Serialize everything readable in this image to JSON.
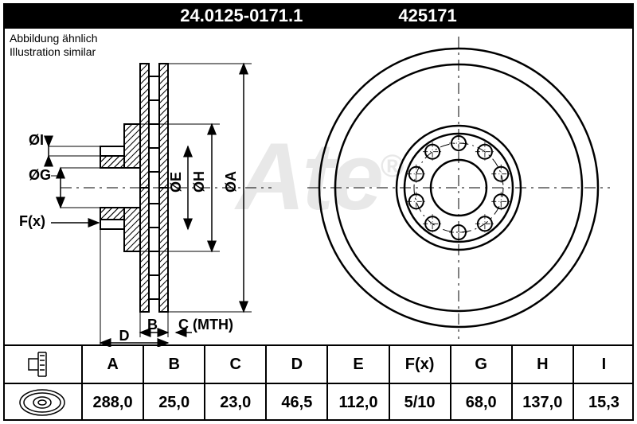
{
  "header": {
    "part_no_long": "24.0125-0171.1",
    "part_no_short": "425171"
  },
  "subtitle": {
    "line1": "Abbildung ähnlich",
    "line2": "Illustration similar"
  },
  "watermark": {
    "text": "Ate",
    "reg": "®"
  },
  "diagram": {
    "labels": {
      "diaI": "ØI",
      "diaG": "ØG",
      "diaE": "ØE",
      "diaH": "ØH",
      "diaA": "ØA",
      "Fx": "F(x)",
      "B": "B",
      "D": "D",
      "C_mth": "C (MTH)"
    },
    "front_view": {
      "outer_radius": 175,
      "inner_radius": 155,
      "hub_radius": 78,
      "bore_radius": 35,
      "bolt_circle_radius": 56,
      "bolt_hole_radius": 9,
      "n_bolts": 10,
      "stroke": "#000000",
      "stroke_width": 2,
      "centerline_dash": "12 6 3 6"
    },
    "side_view": {
      "stroke": "#000000",
      "stroke_width": 2,
      "hatch_spacing": 6
    }
  },
  "table": {
    "headers": [
      "A",
      "B",
      "C",
      "D",
      "E",
      "F(x)",
      "G",
      "H",
      "I"
    ],
    "values": [
      "288,0",
      "25,0",
      "23,0",
      "46,5",
      "112,0",
      "5/10",
      "68,0",
      "137,0",
      "15,3"
    ],
    "border_color": "#000000",
    "font_size": 20
  },
  "colors": {
    "bg": "#ffffff",
    "fg": "#000000",
    "watermark": "#e8e8e8"
  }
}
